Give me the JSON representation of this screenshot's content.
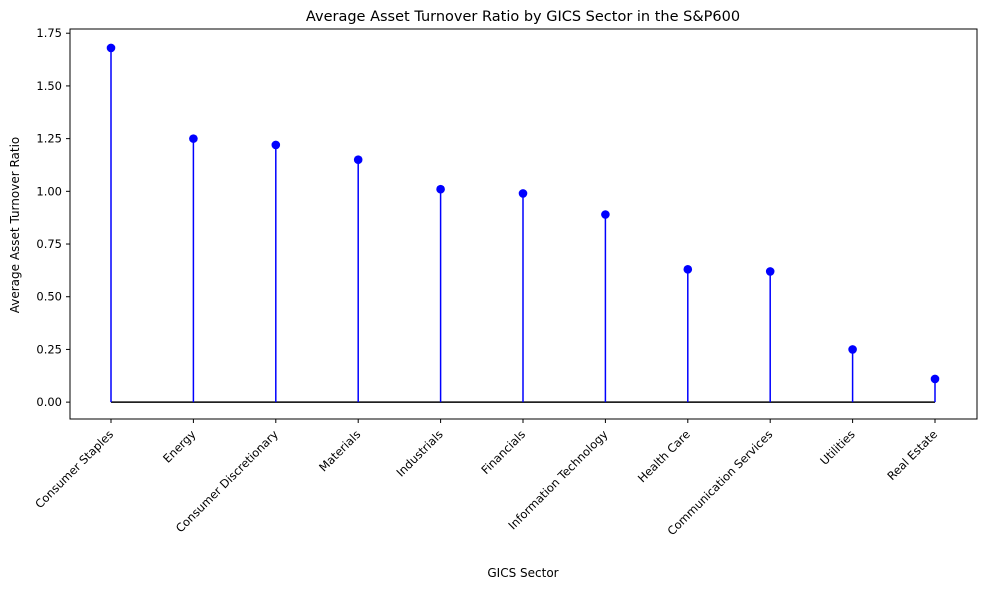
{
  "chart_data": {
    "type": "stem",
    "title": "Average Asset Turnover Ratio by GICS Sector in the S&P600",
    "xlabel": "GICS Sector",
    "ylabel": "Average Asset Turnover Ratio",
    "categories": [
      "Consumer Staples",
      "Energy",
      "Consumer Discretionary",
      "Materials",
      "Industrials",
      "Financials",
      "Information Technology",
      "Health Care",
      "Communication Services",
      "Utilities",
      "Real Estate"
    ],
    "values": [
      1.68,
      1.25,
      1.22,
      1.15,
      1.01,
      0.99,
      0.89,
      0.63,
      0.62,
      0.25,
      0.11
    ],
    "ylim": [
      -0.08,
      1.77
    ],
    "yticks": [
      0.0,
      0.25,
      0.5,
      0.75,
      1.0,
      1.25,
      1.5,
      1.75
    ],
    "ytick_labels": [
      "0.00",
      "0.25",
      "0.50",
      "0.75",
      "1.00",
      "1.25",
      "1.50",
      "1.75"
    ],
    "grid": false,
    "colors": {
      "stem": "#0000ff",
      "marker": "#0000ff",
      "baseline": "#000000"
    }
  }
}
